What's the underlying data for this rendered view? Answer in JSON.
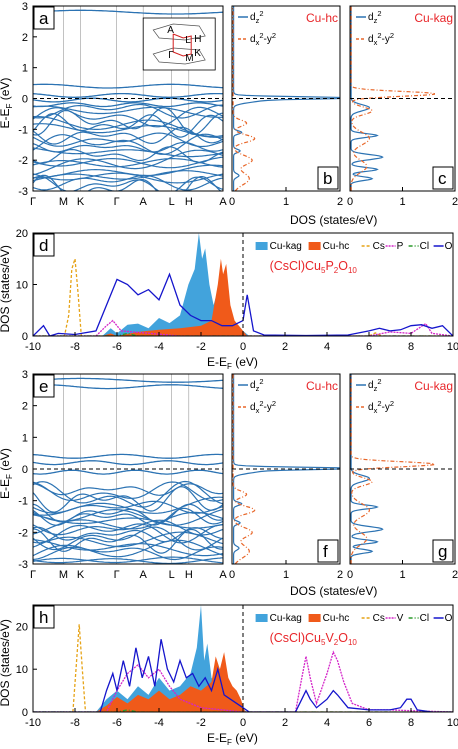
{
  "colors": {
    "band": "#2c73b3",
    "dz2": "#2c73b3",
    "dx2y2": "#e8672a",
    "cu_kag": "#42a3dc",
    "cu_hc": "#f05a1a",
    "cs": "#e6a317",
    "p": "#d426c9",
    "v": "#d426c9",
    "cl": "#2c9a2c",
    "o": "#1515cc",
    "highlight": "#e8262a"
  },
  "chart_data": [
    {
      "panel": "a",
      "type": "line",
      "kpoints": [
        "Γ",
        "M",
        "K",
        "Γ",
        "A",
        "L",
        "H",
        "A"
      ],
      "ylabel": "E-E",
      "ylabel_sub": "F",
      "ylabel_unit": " (eV)",
      "ylim": [
        -3,
        3
      ],
      "yticks": [
        -3,
        -2,
        -1,
        0,
        1,
        2,
        3
      ],
      "fermi_level": 0,
      "inset_bz_labels": [
        "A",
        "L",
        "H",
        "Γ",
        "M",
        "K"
      ],
      "flat_bands_near": [
        2.8,
        0.4,
        0.1,
        -0.05,
        -0.2
      ],
      "manifold_range": [
        -3,
        -0.3
      ]
    },
    {
      "panel": "b",
      "type": "line",
      "site": "Cu-hc",
      "series": [
        {
          "name": "d",
          "sub": "z",
          "sup": "2"
        },
        {
          "name": "d",
          "sub": "x",
          "sup": "2",
          "tail": "-y",
          "sup2": "2"
        }
      ],
      "xlim": [
        0,
        2
      ],
      "xticks": [
        0,
        1,
        2
      ],
      "ylim": [
        -3,
        3
      ]
    },
    {
      "panel": "c",
      "type": "line",
      "site": "Cu-kag",
      "series": [
        {
          "name": "d",
          "sub": "z",
          "sup": "2"
        },
        {
          "name": "d",
          "sub": "x",
          "sup": "2",
          "tail": "-y",
          "sup2": "2"
        }
      ],
      "xlim": [
        0,
        2
      ],
      "xticks": [
        0,
        1,
        2
      ],
      "ylim": [
        -3,
        3
      ]
    },
    {
      "panel": "d",
      "type": "area",
      "formula": "(CsCl)Cu",
      "formula_parts": [
        "5",
        "P",
        "2",
        "O",
        "10"
      ],
      "xlabel": "E-E",
      "xlabel_sub": "F",
      "xlabel_unit": " (eV)",
      "ylabel": "DOS (states/eV)",
      "xlim": [
        -10,
        10
      ],
      "xticks": [
        -10,
        -8,
        -6,
        -4,
        -2,
        0,
        2,
        4,
        6,
        8,
        10
      ],
      "ylim": [
        0,
        20
      ],
      "yticks": [
        0,
        10,
        20
      ],
      "legend": [
        "Cu-kag",
        "Cu-hc",
        "Cs",
        "P",
        "Cl",
        "O"
      ],
      "series": [
        {
          "name": "Cu-kag",
          "x": [
            -10,
            -6.7,
            -6.3,
            -6.0,
            -5.5,
            -5.0,
            -4.5,
            -4.0,
            -3.5,
            -3.0,
            -2.6,
            -2.3,
            -2.1,
            -1.95,
            -1.8,
            -1.6,
            -1.4,
            -1.2,
            -1.0,
            -0.8,
            -0.5,
            -0.2,
            0,
            0.3,
            10
          ],
          "y": [
            0,
            0,
            1.5,
            0.5,
            2.2,
            2.4,
            1.5,
            3.5,
            2.5,
            4,
            10,
            13,
            20,
            15,
            17,
            10,
            6,
            9,
            4,
            6,
            3,
            2,
            1,
            0,
            0
          ]
        },
        {
          "name": "Cu-hc",
          "x": [
            -10,
            -6.7,
            -6.3,
            -6.0,
            -5.0,
            -4.0,
            -3.0,
            -2.0,
            -1.5,
            -1.2,
            -1.05,
            -0.95,
            -0.8,
            -0.6,
            -0.4,
            -0.2,
            0,
            0.2,
            10
          ],
          "y": [
            0,
            0,
            0.5,
            0,
            0.8,
            1.2,
            1.5,
            2,
            3,
            10,
            15,
            12,
            14,
            6,
            3,
            2,
            1,
            0,
            0
          ]
        },
        {
          "name": "Cs",
          "x": [
            -10,
            -8.5,
            -8.3,
            -8.15,
            -8.0,
            -7.85,
            -7.7,
            -6,
            6,
            6.3,
            6.6,
            10
          ],
          "y": [
            0,
            0,
            4,
            13,
            15,
            8,
            0,
            0,
            0,
            0.6,
            0,
            0
          ]
        },
        {
          "name": "P",
          "x": [
            -10,
            -7,
            -6.5,
            -6.2,
            -5.8,
            -3,
            0,
            6,
            7,
            8,
            8.7,
            9,
            10
          ],
          "y": [
            0,
            0,
            2,
            3,
            1,
            0,
            0,
            0,
            0.8,
            0.5,
            2.4,
            0.5,
            0
          ]
        },
        {
          "name": "Cl",
          "x": [
            -10,
            -6,
            -5.5,
            -5,
            0,
            10
          ],
          "y": [
            0,
            0,
            0.5,
            0,
            0,
            0
          ]
        },
        {
          "name": "O",
          "x": [
            -10,
            -9.5,
            -9.2,
            -8.8,
            -8,
            -7,
            -6.5,
            -6,
            -5.5,
            -5,
            -4.5,
            -4,
            -3.5,
            -3,
            -2.5,
            -2,
            -1.5,
            -1,
            -0.5,
            0,
            0.2,
            0.5,
            1,
            3,
            5,
            6,
            6.5,
            7,
            7.5,
            8,
            8.5,
            9,
            9.5,
            10
          ],
          "y": [
            0,
            2,
            0,
            0.5,
            0.3,
            1,
            6,
            11,
            10,
            8,
            9,
            7,
            12,
            6,
            4,
            3,
            3,
            2,
            2,
            3,
            8,
            1,
            0.2,
            0.1,
            0.2,
            1,
            1.5,
            1,
            1.2,
            2,
            2.2,
            1.5,
            2,
            0
          ]
        }
      ]
    },
    {
      "panel": "e",
      "type": "line",
      "kpoints": [
        "Γ",
        "M",
        "K",
        "Γ",
        "A",
        "L",
        "H",
        "A"
      ],
      "ylabel": "E-E",
      "ylabel_sub": "F",
      "ylabel_unit": " (eV)",
      "ylim": [
        -3,
        3
      ],
      "yticks": [
        -3,
        -2,
        -1,
        0,
        1,
        2,
        3
      ],
      "fermi_level": 0,
      "flat_bands_near": [
        2.8,
        2.6,
        0.4,
        0.2,
        -0.1
      ],
      "manifold_range": [
        -3,
        -0.6
      ]
    },
    {
      "panel": "f",
      "type": "line",
      "site": "Cu-hc",
      "series": [
        {
          "name": "d",
          "sub": "z",
          "sup": "2"
        },
        {
          "name": "d",
          "sub": "x",
          "sup": "2",
          "tail": "-y",
          "sup2": "2"
        }
      ],
      "xlim": [
        0,
        2
      ],
      "xticks": [
        0,
        1,
        2
      ],
      "ylim": [
        -3,
        3
      ]
    },
    {
      "panel": "g",
      "type": "line",
      "site": "Cu-kag",
      "series": [
        {
          "name": "d",
          "sub": "z",
          "sup": "2"
        },
        {
          "name": "d",
          "sub": "x",
          "sup": "2",
          "tail": "-y",
          "sup2": "2"
        }
      ],
      "xlim": [
        0,
        2
      ],
      "xticks": [
        0,
        1,
        2
      ],
      "ylim": [
        -3,
        3
      ]
    },
    {
      "panel": "h",
      "type": "area",
      "formula": "(CsCl)Cu",
      "formula_parts": [
        "5",
        "V",
        "2",
        "O",
        "10"
      ],
      "xlabel": "E-E",
      "xlabel_sub": "F",
      "xlabel_unit": " (eV)",
      "ylabel": "DOS (states/eV)",
      "xlim": [
        -10,
        10
      ],
      "xticks": [
        -10,
        -8,
        -6,
        -4,
        -2,
        0,
        2,
        4,
        6,
        8,
        10
      ],
      "ylim": [
        0,
        25
      ],
      "yticks": [
        0,
        10,
        20
      ],
      "legend": [
        "Cu-kag",
        "Cu-hc",
        "Cs",
        "V",
        "Cl",
        "O"
      ],
      "series": [
        {
          "name": "Cu-kag",
          "x": [
            -10,
            -7,
            -6.5,
            -6,
            -5.5,
            -5,
            -4.5,
            -4,
            -3.5,
            -3,
            -2.5,
            -2.2,
            -2.0,
            -1.85,
            -1.7,
            -1.5,
            -1.2,
            -1,
            -0.7,
            -0.4,
            -0.1,
            0.2,
            10
          ],
          "y": [
            0,
            0,
            3,
            5,
            3,
            6,
            4,
            8,
            5,
            6,
            9,
            15,
            25,
            12,
            16,
            8,
            6,
            5,
            3,
            2,
            1,
            0,
            0
          ]
        },
        {
          "name": "Cu-hc",
          "x": [
            -10,
            -7,
            -6.5,
            -6,
            -5.5,
            -5,
            -4.5,
            -4,
            -3.5,
            -3,
            -2.5,
            -2,
            -1.5,
            -1.3,
            -1.1,
            -0.9,
            -0.7,
            -0.5,
            -0.3,
            -0.1,
            0.1,
            10
          ],
          "y": [
            0,
            0,
            1.5,
            3.5,
            2,
            4,
            3,
            5,
            3,
            4,
            6,
            5,
            7,
            13,
            10,
            14,
            8,
            6,
            5,
            3,
            0,
            0
          ]
        },
        {
          "name": "Cs",
          "x": [
            -10,
            -8.1,
            -7.95,
            -7.8,
            -7.65,
            -7.5,
            10
          ],
          "y": [
            0,
            0,
            10,
            20.5,
            10,
            0,
            0
          ]
        },
        {
          "name": "V",
          "x": [
            -10,
            -6.5,
            -6,
            -5.5,
            -5,
            -4.5,
            -4,
            -3.5,
            -3,
            -2,
            0,
            2.5,
            2.8,
            3.0,
            3.2,
            3.5,
            4.0,
            4.3,
            4.5,
            4.8,
            5.2,
            6,
            7,
            8,
            10
          ],
          "y": [
            0,
            0,
            5,
            9,
            11,
            8,
            10,
            6,
            3,
            1,
            0,
            0,
            8,
            13,
            8,
            2,
            9,
            14,
            12,
            7,
            2,
            0.5,
            0.5,
            0.3,
            0
          ]
        },
        {
          "name": "Cl",
          "x": [
            -10,
            -6,
            -5.5,
            -5,
            0,
            10
          ],
          "y": [
            0,
            0,
            0.5,
            0,
            0,
            0
          ]
        },
        {
          "name": "O",
          "x": [
            -10,
            -6.8,
            -6.5,
            -6.2,
            -6,
            -5.7,
            -5.4,
            -5.1,
            -4.8,
            -4.5,
            -4.2,
            -3.9,
            -3.6,
            -3.3,
            -3,
            -2.7,
            -2.4,
            -2.1,
            -1.8,
            -1.5,
            -1.2,
            -0.9,
            -0.6,
            -0.3,
            0,
            0.3,
            2.5,
            2.8,
            3,
            3.2,
            3.5,
            4,
            4.3,
            4.5,
            5,
            6,
            7,
            7.5,
            7.8,
            8,
            8.3,
            9,
            10
          ],
          "y": [
            0,
            0,
            5,
            9,
            5,
            12,
            6,
            15,
            8,
            13,
            6,
            17,
            10,
            7,
            12,
            8,
            9,
            6,
            8,
            5,
            10,
            4,
            3,
            2,
            1,
            0,
            0,
            3,
            5,
            3,
            1,
            3,
            5,
            4,
            1,
            0.5,
            0.5,
            1,
            3,
            3,
            0.5,
            0,
            0
          ]
        }
      ]
    }
  ]
}
